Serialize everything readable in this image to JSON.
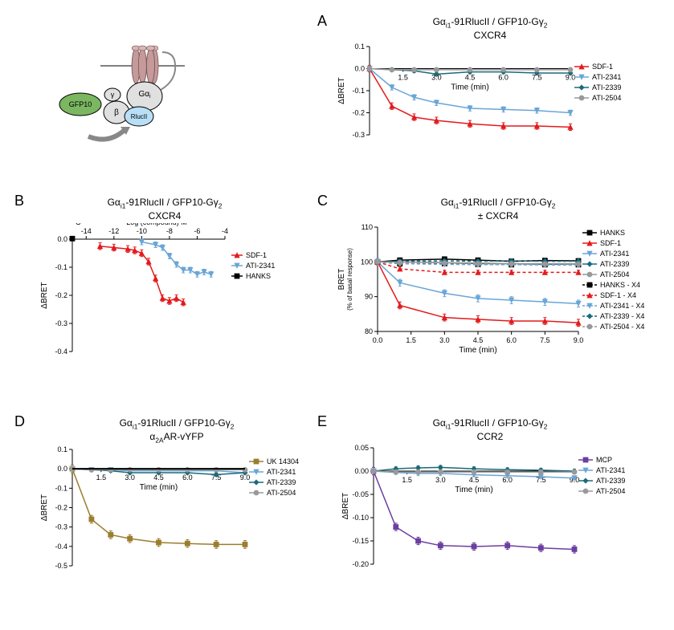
{
  "colors": {
    "sdf1": "#e31a1c",
    "ati2341": "#6aa5d6",
    "ati2339": "#1a6a7a",
    "ati2504": "#999999",
    "hanks": "#000000",
    "uk14304": "#9b7d2e",
    "mcp": "#6b3fa0",
    "axis": "#000000",
    "grid": "#ffffff"
  },
  "panelA": {
    "label": "A",
    "title_line1": "Gα_i1-91RlucII / GFP10-Gγ_2",
    "title_line2": "CXCR4",
    "xlabel": "Time (min)",
    "ylabel": "ΔBRET",
    "xlim": [
      0,
      9
    ],
    "ylim": [
      -0.3,
      0.1
    ],
    "xticks": [
      1.5,
      3.0,
      4.5,
      6.0,
      7.5,
      9.0
    ],
    "yticks": [
      -0.3,
      -0.2,
      -0.1,
      0.0,
      0.1
    ],
    "series": [
      {
        "name": "SDF-1",
        "color": "#e31a1c",
        "marker": "triangle-up",
        "data": [
          [
            0,
            0
          ],
          [
            1,
            -0.17
          ],
          [
            2,
            -0.22
          ],
          [
            3,
            -0.235
          ],
          [
            4.5,
            -0.25
          ],
          [
            6,
            -0.26
          ],
          [
            7.5,
            -0.26
          ],
          [
            9,
            -0.265
          ]
        ],
        "err": 0.015
      },
      {
        "name": "ATI-2341",
        "color": "#6aa5d6",
        "marker": "triangle-down",
        "data": [
          [
            0,
            0
          ],
          [
            1,
            -0.085
          ],
          [
            2,
            -0.13
          ],
          [
            3,
            -0.155
          ],
          [
            4.5,
            -0.18
          ],
          [
            6,
            -0.185
          ],
          [
            7.5,
            -0.19
          ],
          [
            9,
            -0.2
          ]
        ],
        "err": 0.012
      },
      {
        "name": "ATI-2339",
        "color": "#1a6a7a",
        "marker": "diamond",
        "data": [
          [
            0,
            0
          ],
          [
            1,
            -0.005
          ],
          [
            2,
            -0.01
          ],
          [
            3,
            -0.025
          ],
          [
            4.5,
            -0.015
          ],
          [
            6,
            -0.015
          ],
          [
            7.5,
            -0.02
          ],
          [
            9,
            -0.02
          ]
        ],
        "err": 0.008
      },
      {
        "name": "ATI-2504",
        "color": "#999999",
        "marker": "circle",
        "data": [
          [
            0,
            0
          ],
          [
            1,
            -0.005
          ],
          [
            2,
            -0.005
          ],
          [
            3,
            -0.005
          ],
          [
            4.5,
            -0.005
          ],
          [
            6,
            -0.005
          ],
          [
            7.5,
            -0.005
          ],
          [
            9,
            -0.005
          ]
        ],
        "err": 0.006
      }
    ]
  },
  "panelB": {
    "label": "B",
    "title_line1": "Gα_i1-91RlucII / GFP10-Gγ_2",
    "title_line2": "CXCR4",
    "xlabel": "Log (compound) M",
    "ylabel": "ΔBRET",
    "xlim": [
      -15,
      -4
    ],
    "ylim": [
      -0.4,
      0.0
    ],
    "xticks": [
      -14,
      -12,
      -10,
      -8,
      -6,
      -4
    ],
    "yticks": [
      -0.4,
      -0.3,
      -0.2,
      -0.1,
      0.0
    ],
    "clabel": "C",
    "series": [
      {
        "name": "SDF-1",
        "color": "#e31a1c",
        "marker": "triangle-up",
        "data": [
          [
            -13,
            -0.025
          ],
          [
            -12,
            -0.03
          ],
          [
            -11,
            -0.035
          ],
          [
            -10.5,
            -0.04
          ],
          [
            -10,
            -0.05
          ],
          [
            -9.5,
            -0.08
          ],
          [
            -9,
            -0.14
          ],
          [
            -8.5,
            -0.21
          ],
          [
            -8,
            -0.22
          ],
          [
            -7.5,
            -0.21
          ],
          [
            -7,
            -0.225
          ]
        ],
        "err": 0.012
      },
      {
        "name": "ATI-2341",
        "color": "#6aa5d6",
        "marker": "triangle-down",
        "data": [
          [
            -10,
            -0.01
          ],
          [
            -9,
            -0.02
          ],
          [
            -8.5,
            -0.03
          ],
          [
            -8,
            -0.06
          ],
          [
            -7.5,
            -0.09
          ],
          [
            -7,
            -0.11
          ],
          [
            -6.5,
            -0.11
          ],
          [
            -6,
            -0.125
          ],
          [
            -5.5,
            -0.117
          ],
          [
            -5,
            -0.125
          ]
        ],
        "err": 0.01
      },
      {
        "name": "HANKS",
        "color": "#000000",
        "marker": "square",
        "data": [
          [
            -15,
            0.002
          ]
        ],
        "err": 0.008
      }
    ]
  },
  "panelC": {
    "label": "C",
    "title_line1": "Gα_i1-91RlucII / GFP10-Gγ_2",
    "title_line2": "± CXCR4",
    "xlabel": "Time (min)",
    "ylabel_line1": "BRET",
    "ylabel_line2": "(% of basal response)",
    "xlim": [
      0,
      9
    ],
    "ylim": [
      80,
      110
    ],
    "xticks": [
      0.0,
      1.5,
      3.0,
      4.5,
      6.0,
      7.5,
      9.0
    ],
    "yticks": [
      80,
      90,
      100,
      110
    ],
    "series": [
      {
        "name": "HANKS",
        "color": "#000000",
        "marker": "square",
        "dash": false,
        "data": [
          [
            0,
            100
          ],
          [
            1,
            100.5
          ],
          [
            3,
            100.8
          ],
          [
            4.5,
            100.5
          ],
          [
            6,
            100.2
          ],
          [
            7.5,
            100.4
          ],
          [
            9,
            100.3
          ]
        ],
        "err": 0.6
      },
      {
        "name": "SDF-1",
        "color": "#e31a1c",
        "marker": "triangle-up",
        "dash": false,
        "data": [
          [
            0,
            100
          ],
          [
            1,
            87.5
          ],
          [
            3,
            84
          ],
          [
            4.5,
            83.5
          ],
          [
            6,
            83
          ],
          [
            7.5,
            83
          ],
          [
            9,
            82.5
          ]
        ],
        "err": 1.0
      },
      {
        "name": "ATI-2341",
        "color": "#6aa5d6",
        "marker": "triangle-down",
        "dash": false,
        "data": [
          [
            0,
            100
          ],
          [
            1,
            94
          ],
          [
            3,
            91
          ],
          [
            4.5,
            89.5
          ],
          [
            6,
            89
          ],
          [
            7.5,
            88.5
          ],
          [
            9,
            88
          ]
        ],
        "err": 1.0
      },
      {
        "name": "ATI-2339",
        "color": "#1a6a7a",
        "marker": "diamond",
        "dash": false,
        "data": [
          [
            0,
            100
          ],
          [
            1,
            100
          ],
          [
            3,
            99.8
          ],
          [
            4.5,
            99.5
          ],
          [
            6,
            99.5
          ],
          [
            7.5,
            99.3
          ],
          [
            9,
            99.4
          ]
        ],
        "err": 0.5
      },
      {
        "name": "ATI-2504",
        "color": "#999999",
        "marker": "circle",
        "dash": false,
        "data": [
          [
            0,
            100
          ],
          [
            1,
            100
          ],
          [
            3,
            99.8
          ],
          [
            4.5,
            99.7
          ],
          [
            6,
            99.5
          ],
          [
            7.5,
            99.5
          ],
          [
            9,
            99.5
          ]
        ],
        "err": 0.5
      },
      {
        "name": "HANKS - X4",
        "color": "#000000",
        "marker": "square",
        "dash": true,
        "data": [
          [
            0,
            100
          ],
          [
            1,
            99.5
          ],
          [
            3,
            99.5
          ],
          [
            4.5,
            99.3
          ],
          [
            6,
            99.2
          ],
          [
            7.5,
            99.2
          ],
          [
            9,
            99.2
          ]
        ],
        "err": 0.5
      },
      {
        "name": "SDF-1 - X4",
        "color": "#e31a1c",
        "marker": "triangle-up",
        "dash": true,
        "data": [
          [
            0,
            100
          ],
          [
            1,
            98
          ],
          [
            3,
            97
          ],
          [
            4.5,
            97
          ],
          [
            6,
            97
          ],
          [
            7.5,
            97
          ],
          [
            9,
            97
          ]
        ],
        "err": 0.6
      },
      {
        "name": "ATI-2341 - X4",
        "color": "#6aa5d6",
        "marker": "triangle-down",
        "dash": true,
        "data": [
          [
            0,
            100
          ],
          [
            1,
            99.5
          ],
          [
            3,
            99.3
          ],
          [
            4.5,
            99.2
          ],
          [
            6,
            99.2
          ],
          [
            7.5,
            99.1
          ],
          [
            9,
            99.1
          ]
        ],
        "err": 0.5
      },
      {
        "name": "ATI-2339 - X4",
        "color": "#1a6a7a",
        "marker": "diamond",
        "dash": true,
        "data": [
          [
            0,
            100
          ],
          [
            1,
            100.2
          ],
          [
            3,
            100.3
          ],
          [
            4.5,
            100.2
          ],
          [
            6,
            100.3
          ],
          [
            7.5,
            100.2
          ],
          [
            9,
            100.2
          ]
        ],
        "err": 0.5
      },
      {
        "name": "ATI-2504 - X4",
        "color": "#999999",
        "marker": "circle",
        "dash": true,
        "data": [
          [
            0,
            100
          ],
          [
            1,
            99.8
          ],
          [
            3,
            99.7
          ],
          [
            4.5,
            99.5
          ],
          [
            6,
            99.5
          ],
          [
            7.5,
            99.4
          ],
          [
            9,
            99.4
          ]
        ],
        "err": 0.5
      }
    ]
  },
  "panelD": {
    "label": "D",
    "title_line1": "Gα_i1-91RlucII / GFP10-Gγ_2",
    "title_line2": "α_2AAR-vYFP",
    "xlabel": "Time (min)",
    "ylabel": "ΔBRET",
    "xlim": [
      0,
      9
    ],
    "ylim": [
      -0.5,
      0.1
    ],
    "xticks": [
      1.5,
      3.0,
      4.5,
      6.0,
      7.5,
      9.0
    ],
    "yticks": [
      -0.5,
      -0.4,
      -0.3,
      -0.2,
      -0.1,
      0.0,
      0.1
    ],
    "series": [
      {
        "name": "UK 14304",
        "color": "#9b7d2e",
        "marker": "square",
        "data": [
          [
            0,
            0
          ],
          [
            1,
            -0.26
          ],
          [
            2,
            -0.34
          ],
          [
            3,
            -0.36
          ],
          [
            4.5,
            -0.38
          ],
          [
            6,
            -0.385
          ],
          [
            7.5,
            -0.39
          ],
          [
            9,
            -0.39
          ]
        ],
        "err": 0.02
      },
      {
        "name": "ATI-2341",
        "color": "#6aa5d6",
        "marker": "triangle-down",
        "data": [
          [
            0,
            0
          ],
          [
            1,
            -0.005
          ],
          [
            2,
            -0.005
          ],
          [
            3,
            -0.01
          ],
          [
            4.5,
            -0.01
          ],
          [
            6,
            -0.01
          ],
          [
            7.5,
            -0.01
          ],
          [
            9,
            -0.02
          ]
        ],
        "err": 0.008
      },
      {
        "name": "ATI-2339",
        "color": "#1a6a7a",
        "marker": "diamond",
        "data": [
          [
            0,
            0
          ],
          [
            1,
            -0.005
          ],
          [
            2,
            -0.01
          ],
          [
            3,
            -0.02
          ],
          [
            4.5,
            -0.02
          ],
          [
            6,
            -0.02
          ],
          [
            7.5,
            -0.03
          ],
          [
            9,
            -0.02
          ]
        ],
        "err": 0.008
      },
      {
        "name": "ATI-2504",
        "color": "#999999",
        "marker": "circle",
        "data": [
          [
            0,
            0
          ],
          [
            1,
            -0.005
          ],
          [
            2,
            -0.005
          ],
          [
            3,
            -0.005
          ],
          [
            4.5,
            -0.005
          ],
          [
            6,
            -0.005
          ],
          [
            7.5,
            -0.005
          ],
          [
            9,
            -0.005
          ]
        ],
        "err": 0.006
      }
    ],
    "extra_line": {
      "data": [
        [
          0,
          0
        ],
        [
          9,
          0
        ]
      ],
      "color": "#000000"
    }
  },
  "panelE": {
    "label": "E",
    "title_line1": "Gα_i1-91RlucII / GFP10-Gγ_2",
    "title_line2": "CCR2",
    "xlabel": "Time (min)",
    "ylabel": "ΔBRET",
    "xlim": [
      0,
      9
    ],
    "ylim": [
      -0.2,
      0.05
    ],
    "xticks": [
      1.5,
      3.0,
      4.5,
      6.0,
      7.5,
      9.0
    ],
    "yticks": [
      -0.2,
      -0.15,
      -0.1,
      -0.05,
      0.0,
      0.05
    ],
    "series": [
      {
        "name": "MCP",
        "color": "#6b3fa0",
        "marker": "square",
        "data": [
          [
            0,
            0
          ],
          [
            1,
            -0.12
          ],
          [
            2,
            -0.15
          ],
          [
            3,
            -0.16
          ],
          [
            4.5,
            -0.162
          ],
          [
            6,
            -0.16
          ],
          [
            7.5,
            -0.165
          ],
          [
            9,
            -0.168
          ]
        ],
        "err": 0.008
      },
      {
        "name": "ATI-2341",
        "color": "#6aa5d6",
        "marker": "triangle-down",
        "data": [
          [
            0,
            0
          ],
          [
            1,
            -0.003
          ],
          [
            2,
            -0.005
          ],
          [
            3,
            -0.005
          ],
          [
            4.5,
            -0.008
          ],
          [
            6,
            -0.01
          ],
          [
            7.5,
            -0.012
          ],
          [
            9,
            -0.015
          ]
        ],
        "err": 0.004
      },
      {
        "name": "ATI-2339",
        "color": "#1a6a7a",
        "marker": "diamond",
        "data": [
          [
            0,
            0
          ],
          [
            1,
            0.005
          ],
          [
            2,
            0.007
          ],
          [
            3,
            0.008
          ],
          [
            4.5,
            0.005
          ],
          [
            6,
            0.003
          ],
          [
            7.5,
            0.002
          ],
          [
            9,
            0.0
          ]
        ],
        "err": 0.004
      },
      {
        "name": "ATI-2504",
        "color": "#999999",
        "marker": "circle",
        "data": [
          [
            0,
            0
          ],
          [
            1,
            -0.002
          ],
          [
            2,
            -0.002
          ],
          [
            3,
            -0.002
          ],
          [
            4.5,
            -0.002
          ],
          [
            6,
            -0.002
          ],
          [
            7.5,
            -0.002
          ],
          [
            9,
            -0.002
          ]
        ],
        "err": 0.003
      }
    ]
  },
  "diagram": {
    "labels": {
      "gfp10": "GFP10",
      "gamma": "γ",
      "beta": "β",
      "galpha": "Gα_i",
      "rluc": "RlucII"
    },
    "colors": {
      "gfp": "#7bb661",
      "beta": "#e0e0e0",
      "gamma": "#e0e0e0",
      "galpha": "#e0e0e0",
      "rluc": "#b8dff5",
      "helix": "#c49a9a",
      "arrow": "#888888"
    }
  }
}
